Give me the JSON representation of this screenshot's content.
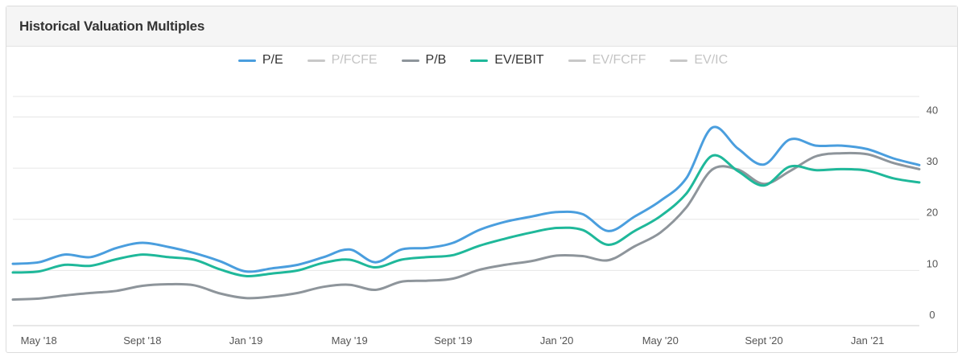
{
  "panel": {
    "title": "Historical Valuation Multiples"
  },
  "legend": [
    {
      "label": "P/E",
      "color": "#4a9ede",
      "active": true
    },
    {
      "label": "P/FCFE",
      "color": "#c8c8c8",
      "active": false
    },
    {
      "label": "P/B",
      "color": "#8e959b",
      "active": true
    },
    {
      "label": "EV/EBIT",
      "color": "#1fb89a",
      "active": true
    },
    {
      "label": "EV/FCFF",
      "color": "#c8c8c8",
      "active": false
    },
    {
      "label": "EV/IC",
      "color": "#c8c8c8",
      "active": false
    }
  ],
  "chart_data": {
    "type": "line",
    "title": "Historical Valuation Multiples",
    "xlabel": "",
    "ylabel": "",
    "ylim": [
      0,
      40
    ],
    "yticks": [
      0,
      10,
      20,
      30,
      40
    ],
    "x_ticks": [
      "May '18",
      "Sept '18",
      "Jan '19",
      "May '19",
      "Sept '19",
      "Jan '20",
      "May '20",
      "Sept '20",
      "Jan '21"
    ],
    "x": [
      "2018-04",
      "2018-05",
      "2018-06",
      "2018-07",
      "2018-08",
      "2018-09",
      "2018-10",
      "2018-11",
      "2018-12",
      "2019-01",
      "2019-02",
      "2019-03",
      "2019-04",
      "2019-05",
      "2019-06",
      "2019-07",
      "2019-08",
      "2019-09",
      "2019-10",
      "2019-11",
      "2019-12",
      "2020-01",
      "2020-02",
      "2020-03",
      "2020-04",
      "2020-05",
      "2020-06",
      "2020-07",
      "2020-08",
      "2020-09",
      "2020-10",
      "2020-11",
      "2020-12",
      "2021-01",
      "2021-02",
      "2021-03"
    ],
    "grid": true,
    "legend_position": "top-center",
    "series": [
      {
        "name": "P/E",
        "color": "#4a9ede",
        "values": [
          11.3,
          11.6,
          13.1,
          12.6,
          14.4,
          15.4,
          14.6,
          13.4,
          11.8,
          9.8,
          10.4,
          11.1,
          12.6,
          14.1,
          11.6,
          14.1,
          14.4,
          15.4,
          17.9,
          19.5,
          20.5,
          21.4,
          21.0,
          17.7,
          20.5,
          23.6,
          28.0,
          37.9,
          33.8,
          30.7,
          35.6,
          34.4,
          34.4,
          33.7,
          31.9,
          30.6
        ]
      },
      {
        "name": "P/B",
        "color": "#8e959b",
        "values": [
          4.3,
          4.5,
          5.1,
          5.6,
          6.0,
          7.0,
          7.3,
          7.1,
          5.5,
          4.6,
          4.9,
          5.6,
          6.8,
          7.2,
          6.2,
          7.8,
          8.0,
          8.4,
          10.1,
          11.1,
          11.8,
          12.9,
          12.8,
          12.0,
          14.7,
          17.4,
          22.3,
          29.7,
          29.7,
          26.9,
          29.4,
          32.3,
          32.9,
          32.7,
          31.0,
          29.8
        ]
      },
      {
        "name": "EV/EBIT",
        "color": "#1fb89a",
        "values": [
          9.6,
          9.8,
          11.1,
          10.9,
          12.2,
          13.1,
          12.6,
          12.1,
          10.2,
          8.9,
          9.4,
          10.0,
          11.5,
          12.1,
          10.6,
          12.1,
          12.6,
          13.0,
          14.8,
          16.2,
          17.4,
          18.3,
          17.9,
          15.0,
          17.7,
          20.6,
          25.0,
          32.4,
          29.4,
          26.6,
          30.3,
          29.6,
          29.8,
          29.5,
          28.0,
          27.2
        ]
      }
    ]
  }
}
